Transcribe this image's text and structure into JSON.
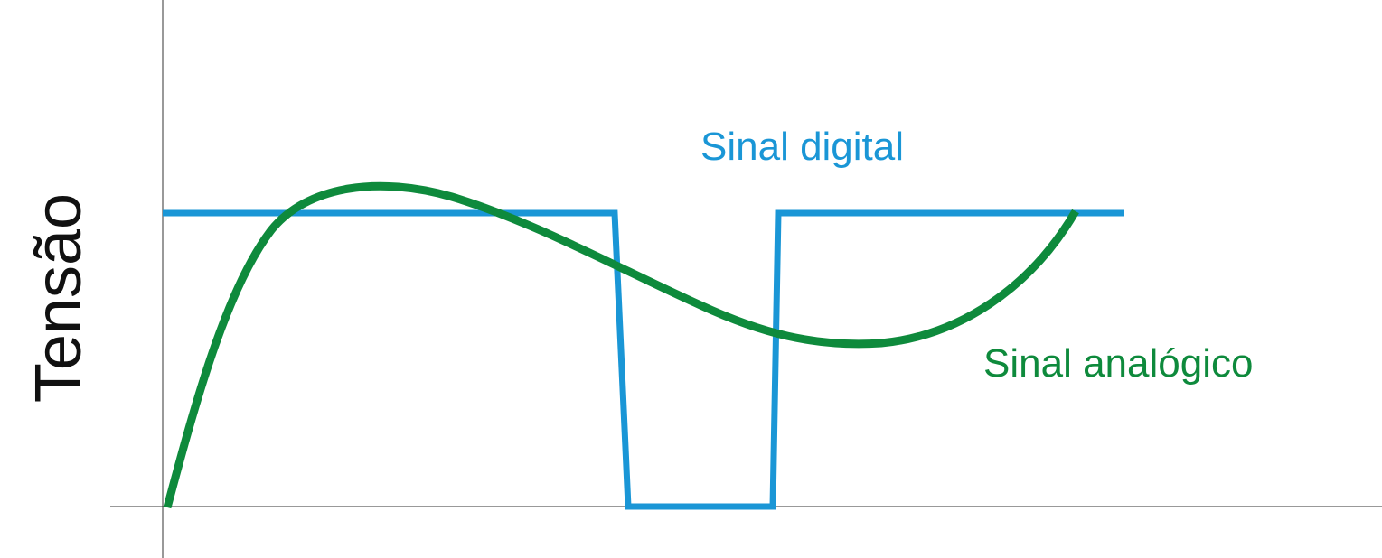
{
  "axis": {
    "y_label": "Tensão"
  },
  "signals": {
    "digital": {
      "label": "Sinal digital",
      "color": "#1a96d6"
    },
    "analog": {
      "label": "Sinal analógico",
      "color": "#0e8a3c"
    }
  },
  "chart_data": {
    "type": "line",
    "ylabel": "Tensão",
    "series": [
      {
        "name": "Sinal digital",
        "kind": "square-wave",
        "levels": [
          "high",
          "low",
          "high"
        ]
      },
      {
        "name": "Sinal analógico",
        "kind": "smooth-curve"
      }
    ]
  }
}
